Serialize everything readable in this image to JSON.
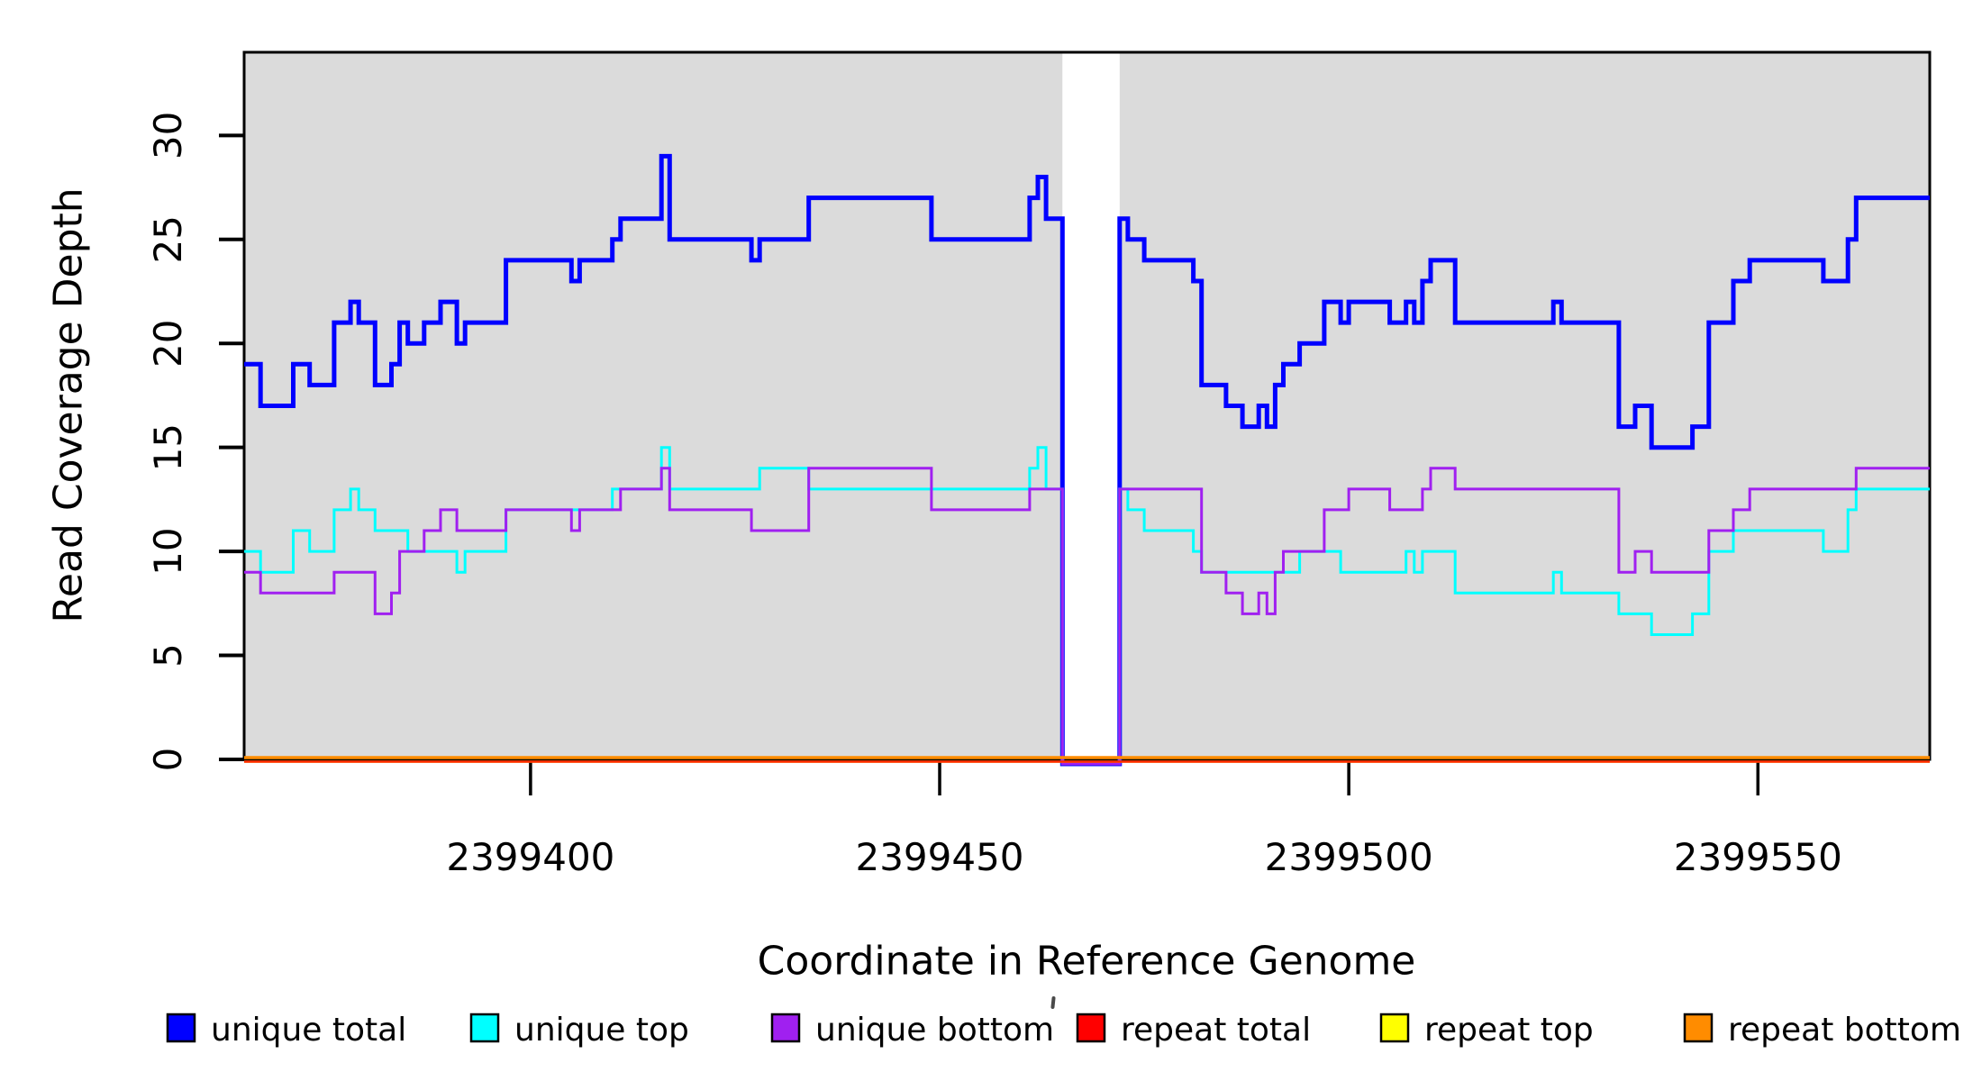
{
  "chart_data": {
    "type": "line",
    "subtype": "step",
    "title": "",
    "xlabel": "Coordinate in Reference Genome",
    "ylabel": "Read Coverage Depth",
    "xlim": [
      2399365,
      2399571
    ],
    "ylim": [
      0,
      34
    ],
    "x_ticks": [
      2399400,
      2399450,
      2399500,
      2399550
    ],
    "y_ticks": [
      0,
      5,
      10,
      15,
      20,
      25,
      30
    ],
    "grid": false,
    "legend_position": "bottom",
    "plot_background": "#FFFFFF",
    "shaded_regions": {
      "color": "#DBDBDB",
      "ranges": [
        [
          2399365,
          2399465
        ],
        [
          2399472,
          2399571
        ]
      ]
    },
    "coverage_gap": [
      2399465,
      2399472
    ],
    "series": [
      {
        "name": "unique total",
        "color": "#0000FF",
        "steps": [
          [
            2399365,
            19
          ],
          [
            2399367,
            17
          ],
          [
            2399371,
            19
          ],
          [
            2399373,
            18
          ],
          [
            2399376,
            21
          ],
          [
            2399378,
            22
          ],
          [
            2399379,
            21
          ],
          [
            2399381,
            18
          ],
          [
            2399383,
            19
          ],
          [
            2399384,
            21
          ],
          [
            2399385,
            20
          ],
          [
            2399387,
            21
          ],
          [
            2399389,
            22
          ],
          [
            2399391,
            20
          ],
          [
            2399392,
            21
          ],
          [
            2399397,
            24
          ],
          [
            2399405,
            23
          ],
          [
            2399406,
            24
          ],
          [
            2399410,
            25
          ],
          [
            2399411,
            26
          ],
          [
            2399416,
            29
          ],
          [
            2399417,
            25
          ],
          [
            2399427,
            24
          ],
          [
            2399428,
            25
          ],
          [
            2399434,
            27
          ],
          [
            2399449,
            25
          ],
          [
            2399461,
            27
          ],
          [
            2399462,
            28
          ],
          [
            2399463,
            26
          ],
          [
            2399465,
            0
          ],
          [
            2399472,
            26
          ],
          [
            2399473,
            25
          ],
          [
            2399475,
            24
          ],
          [
            2399481,
            23
          ],
          [
            2399482,
            18
          ],
          [
            2399485,
            17
          ],
          [
            2399487,
            16
          ],
          [
            2399489,
            17
          ],
          [
            2399490,
            16
          ],
          [
            2399491,
            18
          ],
          [
            2399492,
            19
          ],
          [
            2399494,
            20
          ],
          [
            2399497,
            22
          ],
          [
            2399499,
            21
          ],
          [
            2399500,
            22
          ],
          [
            2399505,
            21
          ],
          [
            2399507,
            22
          ],
          [
            2399508,
            21
          ],
          [
            2399509,
            23
          ],
          [
            2399510,
            24
          ],
          [
            2399513,
            21
          ],
          [
            2399525,
            22
          ],
          [
            2399526,
            21
          ],
          [
            2399533,
            16
          ],
          [
            2399535,
            17
          ],
          [
            2399537,
            15
          ],
          [
            2399542,
            16
          ],
          [
            2399544,
            21
          ],
          [
            2399547,
            23
          ],
          [
            2399549,
            24
          ],
          [
            2399558,
            23
          ],
          [
            2399561,
            25
          ],
          [
            2399562,
            27
          ]
        ]
      },
      {
        "name": "unique top",
        "color": "#00FFFF",
        "steps": [
          [
            2399365,
            10
          ],
          [
            2399367,
            9
          ],
          [
            2399371,
            11
          ],
          [
            2399373,
            10
          ],
          [
            2399376,
            12
          ],
          [
            2399378,
            13
          ],
          [
            2399379,
            12
          ],
          [
            2399381,
            11
          ],
          [
            2399385,
            10
          ],
          [
            2399391,
            9
          ],
          [
            2399392,
            10
          ],
          [
            2399397,
            12
          ],
          [
            2399410,
            13
          ],
          [
            2399416,
            15
          ],
          [
            2399417,
            13
          ],
          [
            2399428,
            14
          ],
          [
            2399434,
            13
          ],
          [
            2399461,
            14
          ],
          [
            2399462,
            15
          ],
          [
            2399463,
            13
          ],
          [
            2399465,
            0
          ],
          [
            2399472,
            13
          ],
          [
            2399473,
            12
          ],
          [
            2399475,
            11
          ],
          [
            2399481,
            10
          ],
          [
            2399482,
            9
          ],
          [
            2399494,
            10
          ],
          [
            2399499,
            9
          ],
          [
            2399507,
            10
          ],
          [
            2399508,
            9
          ],
          [
            2399509,
            10
          ],
          [
            2399513,
            8
          ],
          [
            2399525,
            9
          ],
          [
            2399526,
            8
          ],
          [
            2399533,
            7
          ],
          [
            2399537,
            6
          ],
          [
            2399542,
            7
          ],
          [
            2399544,
            10
          ],
          [
            2399547,
            11
          ],
          [
            2399558,
            10
          ],
          [
            2399561,
            12
          ],
          [
            2399562,
            13
          ]
        ]
      },
      {
        "name": "unique bottom",
        "color": "#A020F0",
        "steps": [
          [
            2399365,
            9
          ],
          [
            2399367,
            8
          ],
          [
            2399376,
            9
          ],
          [
            2399381,
            7
          ],
          [
            2399383,
            8
          ],
          [
            2399384,
            10
          ],
          [
            2399387,
            11
          ],
          [
            2399389,
            12
          ],
          [
            2399391,
            11
          ],
          [
            2399397,
            12
          ],
          [
            2399405,
            11
          ],
          [
            2399406,
            12
          ],
          [
            2399411,
            13
          ],
          [
            2399416,
            14
          ],
          [
            2399417,
            12
          ],
          [
            2399427,
            11
          ],
          [
            2399434,
            14
          ],
          [
            2399449,
            12
          ],
          [
            2399461,
            13
          ],
          [
            2399465,
            0
          ],
          [
            2399472,
            13
          ],
          [
            2399482,
            9
          ],
          [
            2399485,
            8
          ],
          [
            2399487,
            7
          ],
          [
            2399489,
            8
          ],
          [
            2399490,
            7
          ],
          [
            2399491,
            9
          ],
          [
            2399492,
            10
          ],
          [
            2399497,
            12
          ],
          [
            2399500,
            13
          ],
          [
            2399505,
            12
          ],
          [
            2399509,
            13
          ],
          [
            2399510,
            14
          ],
          [
            2399513,
            13
          ],
          [
            2399533,
            9
          ],
          [
            2399535,
            10
          ],
          [
            2399537,
            9
          ],
          [
            2399544,
            11
          ],
          [
            2399547,
            12
          ],
          [
            2399549,
            13
          ],
          [
            2399562,
            14
          ]
        ]
      },
      {
        "name": "repeat total",
        "color": "#FF0000",
        "steps": [
          [
            2399365,
            0
          ]
        ]
      },
      {
        "name": "repeat top",
        "color": "#FFFF00",
        "steps": [
          [
            2399365,
            0
          ]
        ]
      },
      {
        "name": "repeat bottom",
        "color": "#FF8C00",
        "steps": [
          [
            2399365,
            0
          ]
        ]
      }
    ],
    "legend": [
      {
        "label": "unique total",
        "color": "#0000FF"
      },
      {
        "label": "unique top",
        "color": "#00FFFF"
      },
      {
        "label": "unique bottom",
        "color": "#A020F0"
      },
      {
        "label": "repeat total",
        "color": "#FF0000"
      },
      {
        "label": "repeat top",
        "color": "#FFFF00"
      },
      {
        "label": "repeat bottom",
        "color": "#FF8C00"
      }
    ]
  }
}
